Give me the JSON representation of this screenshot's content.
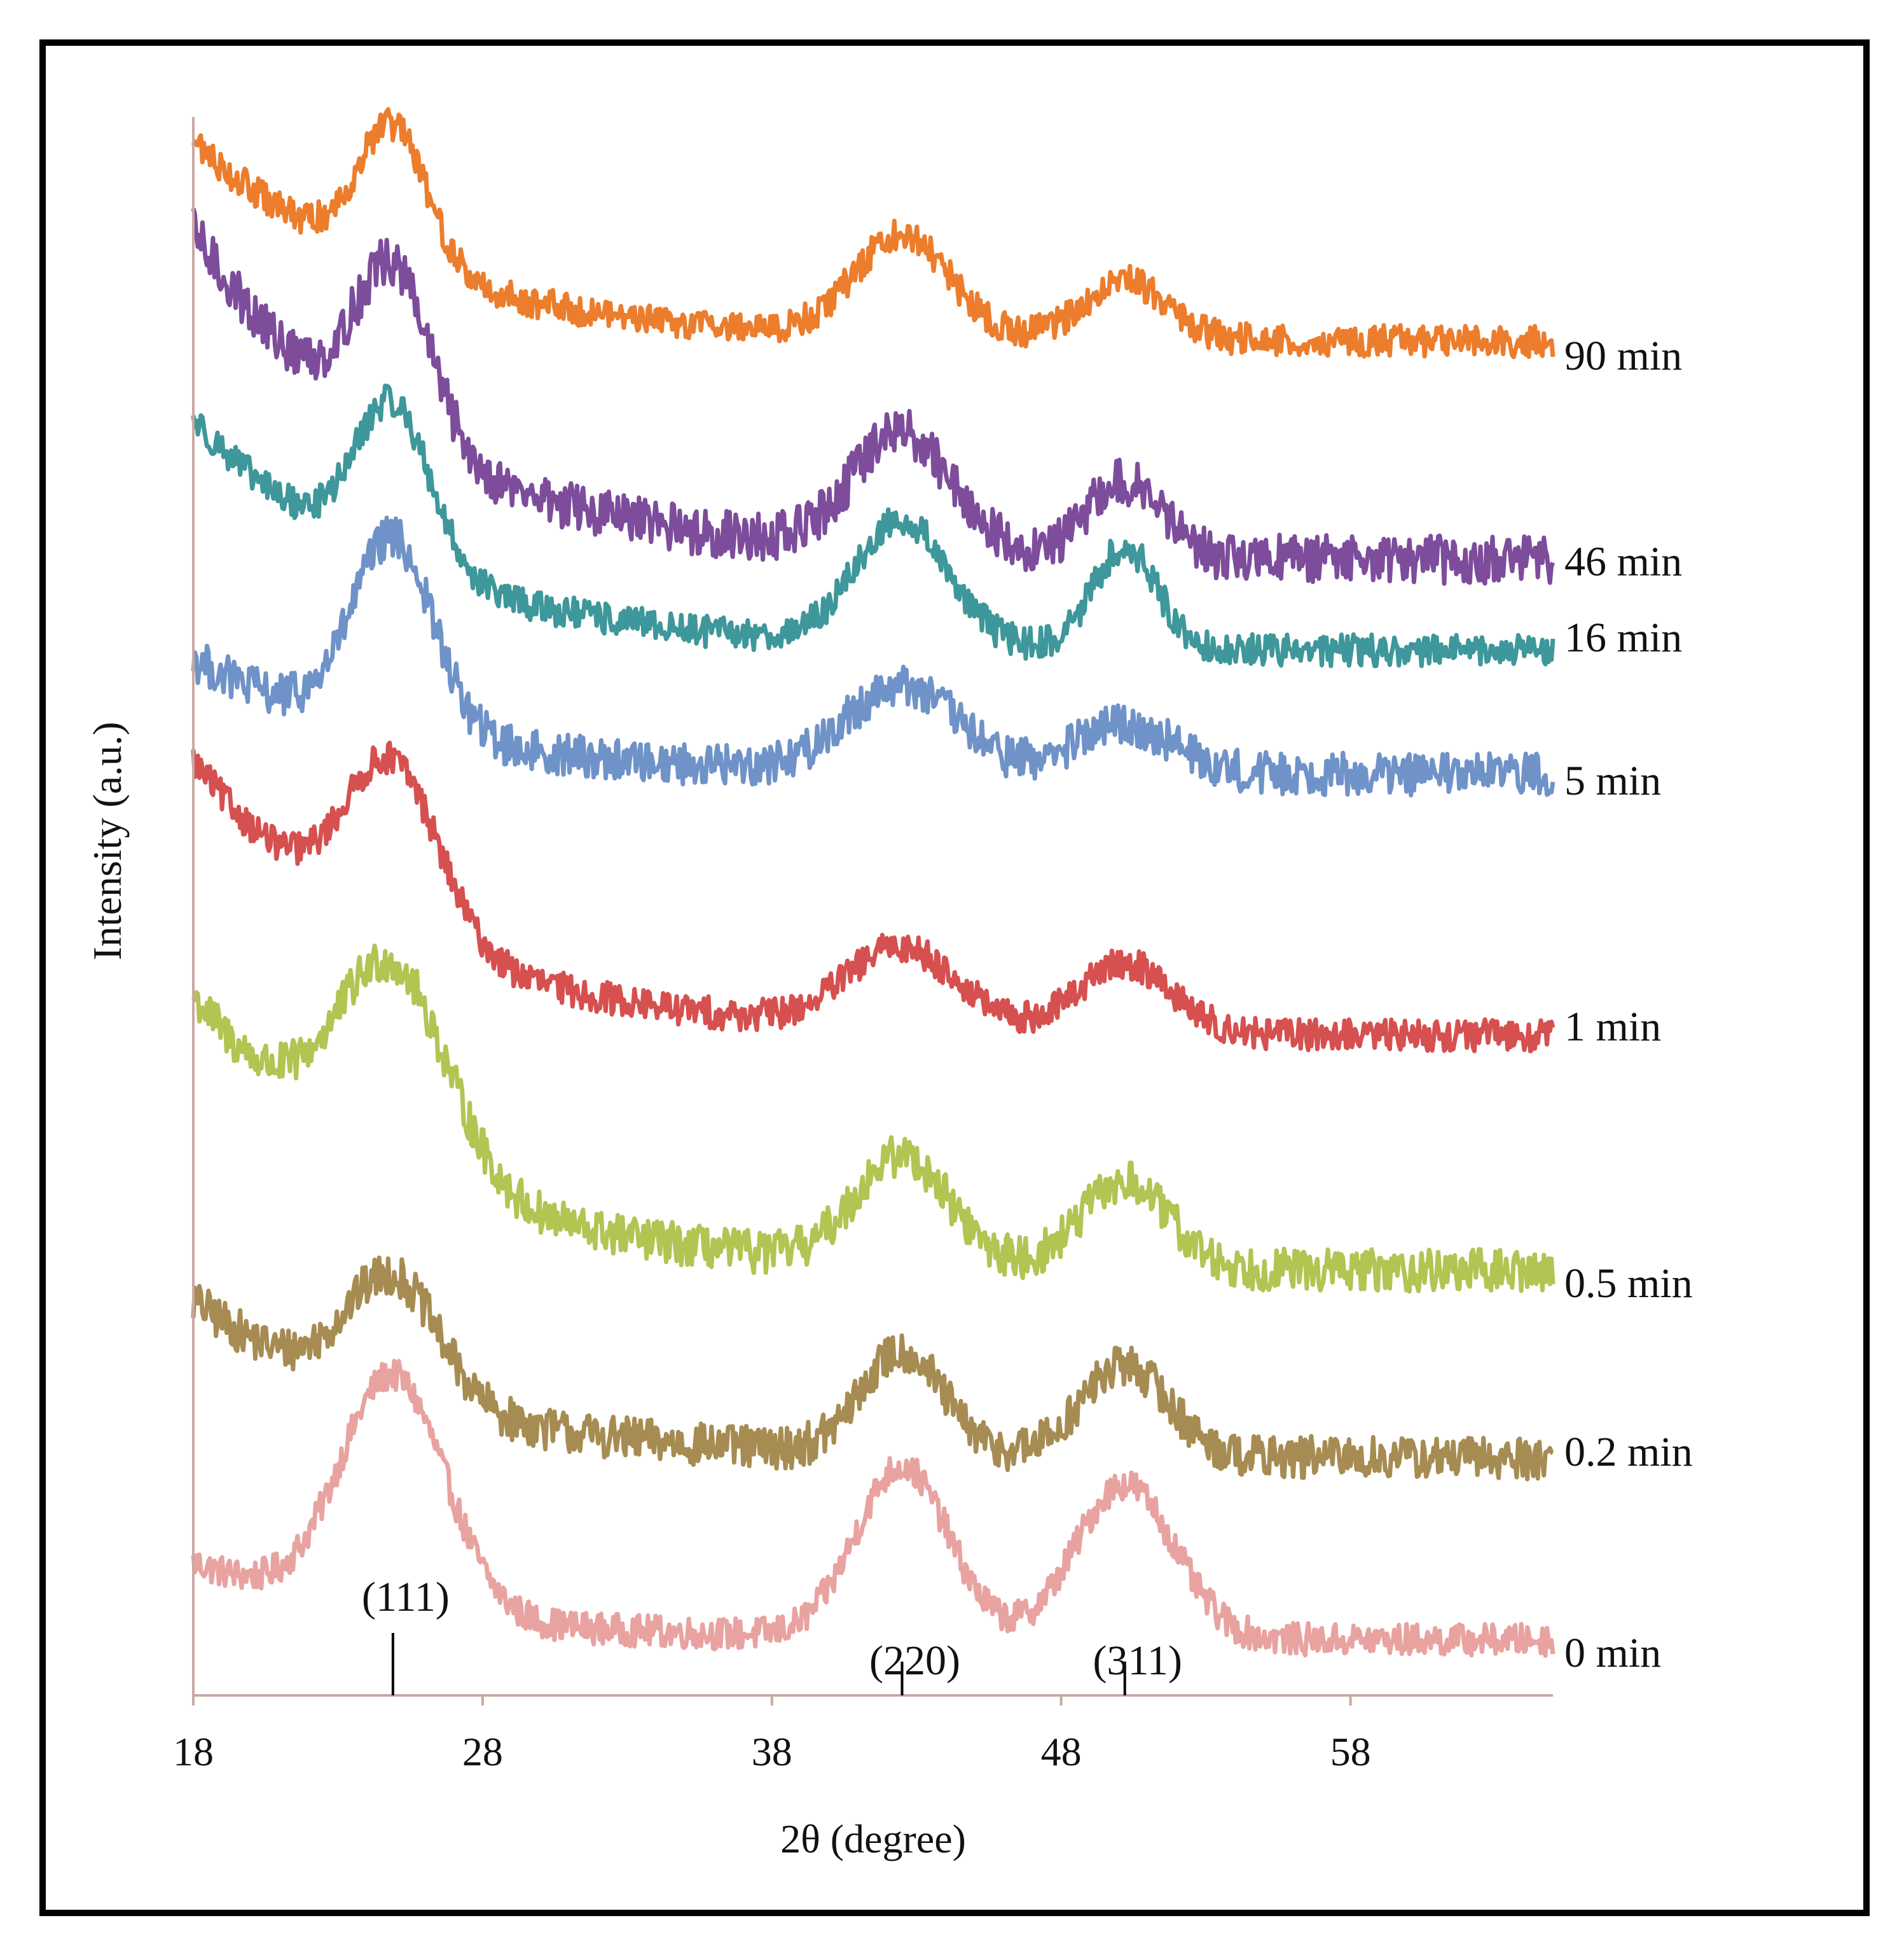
{
  "chart_data": {
    "type": "line",
    "title": "",
    "xlabel": "2θ (degree)",
    "ylabel": "Intensity (a.u.)",
    "xlim": [
      18,
      65
    ],
    "xticks": [
      18,
      28,
      38,
      48,
      58
    ],
    "xtick_labels": [
      "18",
      "28",
      "38",
      "48",
      "58"
    ],
    "y_ticks_shown": false,
    "grid": false,
    "legend": "inline labels at right end of each trace",
    "peaks": [
      {
        "label": "(111)",
        "x": 24.9
      },
      {
        "label": "(220)",
        "x": 42.5
      },
      {
        "label": "(311)",
        "x": 50.2
      }
    ],
    "series": [
      {
        "name": "0 min",
        "color": "#e8a3a0",
        "baseline": 0.0,
        "bg_start": 1.5,
        "bg_end": 0.05,
        "amps": [
          4.4,
          3.2,
          2.9
        ],
        "widths": [
          1.8,
          1.6,
          1.7
        ],
        "noise": 0.3
      },
      {
        "name": "0.2 min",
        "color": "#a68c52",
        "baseline": 3.4,
        "bg_start": 3.0,
        "bg_end": 0.05,
        "amps": [
          2.3,
          1.9,
          1.7
        ],
        "widths": [
          1.6,
          1.4,
          1.5
        ],
        "noise": 0.4
      },
      {
        "name": "0.5 min",
        "color": "#b2c452",
        "baseline": 6.9,
        "bg_start": 5.2,
        "bg_end": 0.05,
        "amps": [
          3.8,
          2.0,
          1.6
        ],
        "widths": [
          1.9,
          1.6,
          1.5
        ],
        "noise": 0.4
      },
      {
        "name": "1 min",
        "color": "#d65050",
        "baseline": 11.3,
        "bg_start": 5.2,
        "bg_end": 0.05,
        "amps": [
          3.2,
          1.5,
          1.3
        ],
        "widths": [
          1.6,
          1.9,
          1.6
        ],
        "noise": 0.3
      },
      {
        "name": "5 min",
        "color": "#6f93c8",
        "baseline": 16.2,
        "bg_start": 2.2,
        "bg_end": 0.05,
        "amps": [
          3.6,
          1.6,
          0.9
        ],
        "widths": [
          1.4,
          1.9,
          1.7
        ],
        "noise": 0.4
      },
      {
        "name": "16 min",
        "color": "#3e979a",
        "baseline": 18.5,
        "bg_start": 4.4,
        "bg_end": 0.05,
        "amps": [
          3.0,
          2.3,
          1.9
        ],
        "widths": [
          1.3,
          1.6,
          1.1
        ],
        "noise": 0.3
      },
      {
        "name": "46 min",
        "color": "#7d4d9c",
        "baseline": 20.2,
        "bg_start": 6.2,
        "bg_end": 0.05,
        "amps": [
          3.2,
          2.2,
          1.4
        ],
        "widths": [
          1.3,
          1.7,
          1.3
        ],
        "noise": 0.45
      },
      {
        "name": "90 min",
        "color": "#ec7d2c",
        "baseline": 24.3,
        "bg_start": 3.8,
        "bg_end": 0.05,
        "amps": [
          2.6,
          1.9,
          1.1
        ],
        "widths": [
          1.2,
          1.6,
          1.4
        ],
        "noise": 0.3
      }
    ]
  }
}
